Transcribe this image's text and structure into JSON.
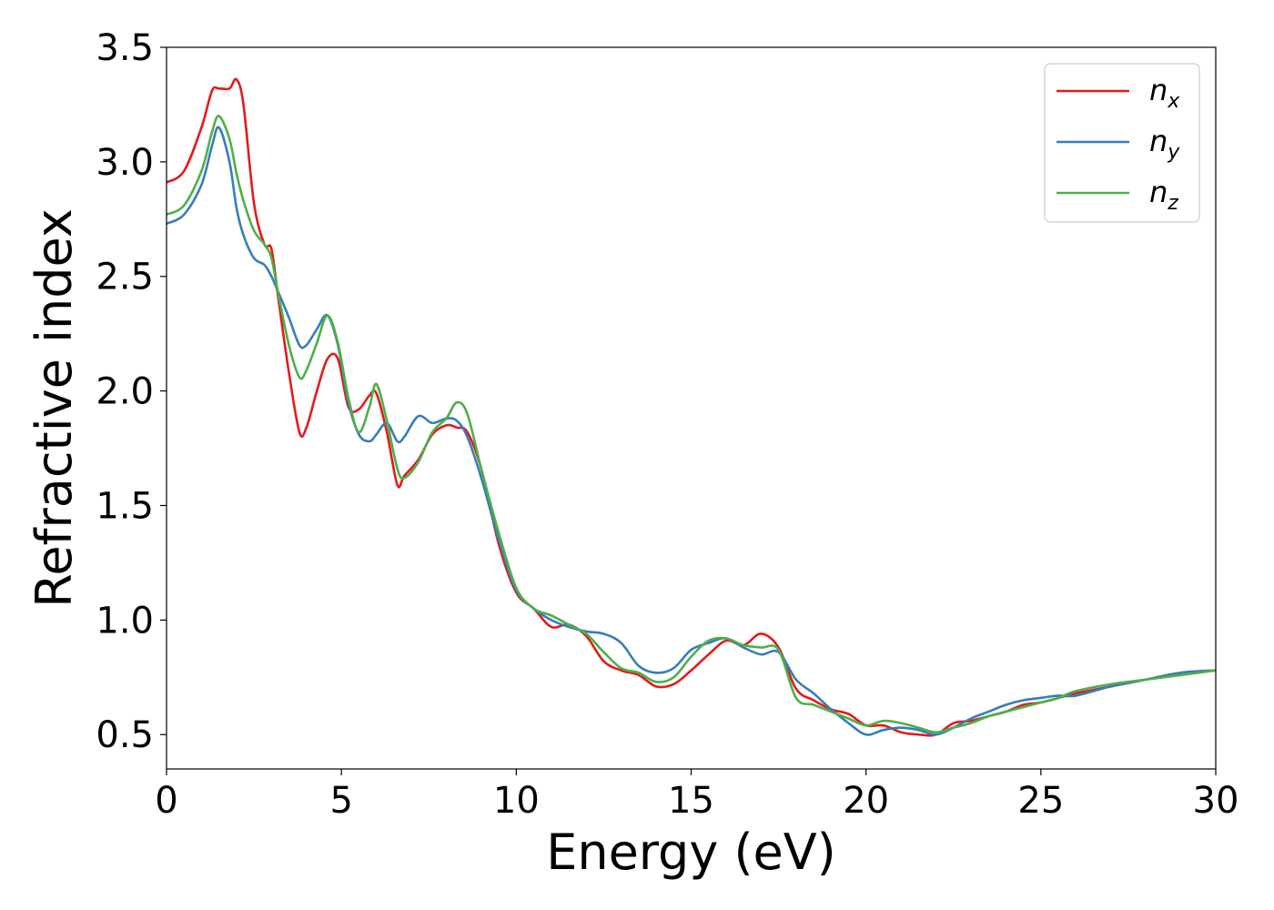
{
  "chart_data": {
    "type": "line",
    "title": "",
    "xlabel": "Energy (eV)",
    "ylabel": "Refractive index",
    "xlim": [
      0,
      30
    ],
    "ylim": [
      0.35,
      3.5
    ],
    "xticks": [
      0,
      5,
      10,
      15,
      20,
      25,
      30
    ],
    "xtick_labels": [
      "0",
      "5",
      "10",
      "15",
      "20",
      "25",
      "30"
    ],
    "yticks": [
      0.5,
      1.0,
      1.5,
      2.0,
      2.5,
      3.0,
      3.5
    ],
    "ytick_labels": [
      "0.5",
      "1.0",
      "1.5",
      "2.0",
      "2.5",
      "3.0",
      "3.5"
    ],
    "grid": false,
    "legend_position": "top-right",
    "series": [
      {
        "name": "n_x",
        "label_base": "n",
        "label_sub": "x",
        "color": "#e41a1c",
        "x": [
          0,
          0.5,
          1.0,
          1.3,
          1.5,
          1.8,
          2.0,
          2.2,
          2.5,
          2.8,
          3.0,
          3.2,
          3.5,
          3.8,
          4.0,
          4.3,
          4.6,
          4.9,
          5.2,
          5.5,
          5.8,
          6.0,
          6.3,
          6.6,
          6.8,
          7.2,
          7.6,
          8.0,
          8.3,
          8.6,
          9.0,
          9.5,
          10.0,
          10.5,
          11.0,
          11.5,
          12.0,
          12.5,
          13.0,
          13.5,
          14.0,
          14.5,
          15.0,
          15.5,
          16.0,
          16.5,
          17.0,
          17.5,
          18.0,
          18.5,
          19.0,
          19.5,
          20.0,
          20.5,
          21.0,
          21.5,
          22.0,
          22.5,
          23.0,
          23.5,
          24.0,
          24.5,
          25.0,
          25.5,
          26.0,
          27.0,
          28.0,
          29.0,
          30.0
        ],
        "y": [
          2.91,
          2.96,
          3.15,
          3.31,
          3.32,
          3.32,
          3.36,
          3.25,
          2.82,
          2.64,
          2.62,
          2.4,
          2.08,
          1.82,
          1.84,
          2.0,
          2.14,
          2.14,
          1.93,
          1.92,
          1.98,
          1.99,
          1.82,
          1.59,
          1.63,
          1.7,
          1.81,
          1.85,
          1.84,
          1.82,
          1.66,
          1.33,
          1.12,
          1.05,
          0.97,
          0.98,
          0.93,
          0.82,
          0.78,
          0.76,
          0.71,
          0.72,
          0.78,
          0.85,
          0.91,
          0.89,
          0.94,
          0.88,
          0.7,
          0.65,
          0.61,
          0.59,
          0.54,
          0.54,
          0.51,
          0.5,
          0.5,
          0.55,
          0.56,
          0.58,
          0.6,
          0.63,
          0.64,
          0.66,
          0.68,
          0.71,
          0.74,
          0.77,
          0.78
        ]
      },
      {
        "name": "n_y",
        "label_base": "n",
        "label_sub": "y",
        "color": "#377eb8",
        "x": [
          0,
          0.5,
          1.0,
          1.3,
          1.5,
          1.8,
          2.0,
          2.2,
          2.5,
          2.8,
          3.0,
          3.2,
          3.5,
          3.8,
          4.0,
          4.3,
          4.6,
          4.9,
          5.2,
          5.5,
          5.8,
          6.0,
          6.3,
          6.6,
          6.8,
          7.2,
          7.6,
          8.0,
          8.3,
          8.6,
          9.0,
          9.5,
          10.0,
          10.5,
          11.0,
          11.5,
          12.0,
          12.5,
          13.0,
          13.5,
          14.0,
          14.5,
          15.0,
          15.5,
          16.0,
          16.5,
          17.0,
          17.5,
          18.0,
          18.5,
          19.0,
          19.5,
          20.0,
          20.5,
          21.0,
          21.5,
          22.0,
          22.5,
          23.0,
          23.5,
          24.0,
          24.5,
          25.0,
          25.5,
          26.0,
          27.0,
          28.0,
          29.0,
          30.0
        ],
        "y": [
          2.73,
          2.77,
          2.9,
          3.07,
          3.15,
          3.0,
          2.8,
          2.68,
          2.58,
          2.55,
          2.5,
          2.43,
          2.32,
          2.2,
          2.2,
          2.27,
          2.33,
          2.2,
          1.95,
          1.81,
          1.78,
          1.81,
          1.86,
          1.78,
          1.8,
          1.89,
          1.86,
          1.88,
          1.87,
          1.8,
          1.62,
          1.35,
          1.13,
          1.05,
          1.0,
          0.97,
          0.95,
          0.94,
          0.9,
          0.8,
          0.77,
          0.79,
          0.87,
          0.9,
          0.92,
          0.88,
          0.85,
          0.86,
          0.74,
          0.68,
          0.61,
          0.55,
          0.5,
          0.52,
          0.53,
          0.52,
          0.5,
          0.53,
          0.57,
          0.6,
          0.63,
          0.65,
          0.66,
          0.67,
          0.67,
          0.71,
          0.74,
          0.77,
          0.78
        ]
      },
      {
        "name": "n_z",
        "label_base": "n",
        "label_sub": "z",
        "color": "#4daf4a",
        "x": [
          0,
          0.5,
          1.0,
          1.3,
          1.5,
          1.8,
          2.0,
          2.2,
          2.5,
          2.8,
          3.0,
          3.2,
          3.5,
          3.8,
          4.0,
          4.3,
          4.6,
          4.9,
          5.2,
          5.5,
          5.8,
          6.0,
          6.3,
          6.6,
          6.8,
          7.2,
          7.6,
          8.0,
          8.3,
          8.6,
          9.0,
          9.5,
          10.0,
          10.5,
          11.0,
          11.5,
          12.0,
          12.5,
          13.0,
          13.5,
          14.0,
          14.5,
          15.0,
          15.5,
          16.0,
          16.5,
          17.0,
          17.5,
          18.0,
          18.5,
          19.0,
          19.5,
          20.0,
          20.5,
          21.0,
          21.5,
          22.0,
          22.5,
          23.0,
          23.5,
          24.0,
          24.5,
          25.0,
          25.5,
          26.0,
          27.0,
          28.0,
          29.0,
          30.0
        ],
        "y": [
          2.77,
          2.81,
          2.96,
          3.13,
          3.2,
          3.1,
          2.95,
          2.83,
          2.7,
          2.64,
          2.58,
          2.42,
          2.2,
          2.06,
          2.09,
          2.21,
          2.33,
          2.21,
          1.97,
          1.82,
          1.93,
          2.03,
          1.87,
          1.66,
          1.62,
          1.69,
          1.82,
          1.88,
          1.95,
          1.9,
          1.66,
          1.38,
          1.14,
          1.05,
          1.02,
          0.98,
          0.94,
          0.86,
          0.79,
          0.77,
          0.73,
          0.75,
          0.84,
          0.91,
          0.92,
          0.89,
          0.88,
          0.87,
          0.66,
          0.63,
          0.6,
          0.57,
          0.54,
          0.56,
          0.55,
          0.53,
          0.51,
          0.53,
          0.55,
          0.58,
          0.6,
          0.62,
          0.64,
          0.66,
          0.69,
          0.72,
          0.74,
          0.76,
          0.78
        ]
      }
    ]
  }
}
